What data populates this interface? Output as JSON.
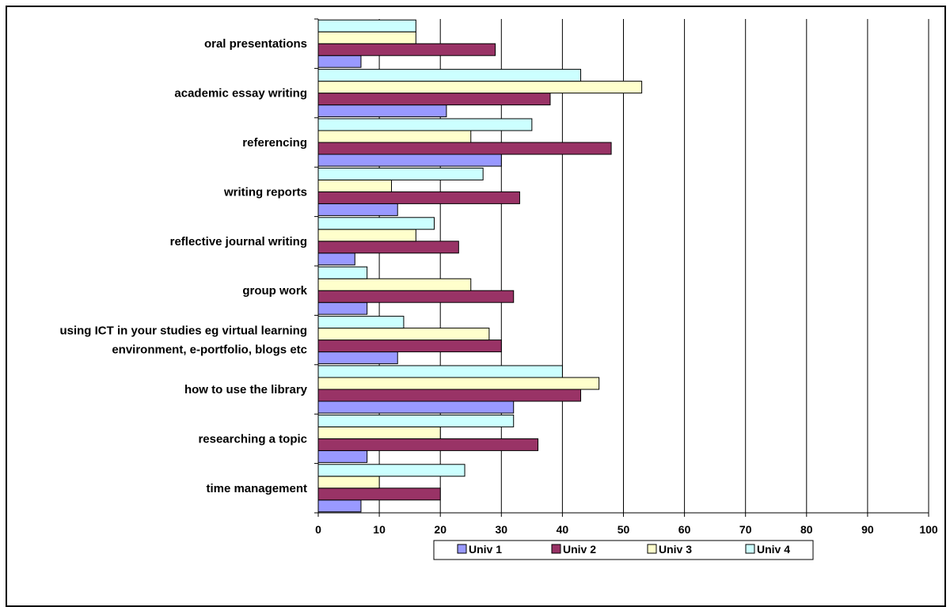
{
  "chart_data": {
    "type": "bar",
    "orientation": "horizontal",
    "categories": [
      "oral presentations",
      "academic essay writing",
      "referencing",
      "writing reports",
      "reflective journal writing",
      "group work",
      "using ICT in your studies eg virtual learning environment, e-portfolio, blogs etc",
      "how to use the library",
      "researching a topic",
      "time management"
    ],
    "category_lines": [
      [
        "oral presentations"
      ],
      [
        "academic essay writing"
      ],
      [
        "referencing"
      ],
      [
        "writing reports"
      ],
      [
        "reflective journal writing"
      ],
      [
        "group work"
      ],
      [
        "using ICT in your studies eg virtual learning",
        "environment, e-portfolio, blogs etc"
      ],
      [
        "how to use the library"
      ],
      [
        "researching a topic"
      ],
      [
        "time management"
      ]
    ],
    "series": [
      {
        "name": "Univ 1",
        "color": "#9999FF",
        "values": [
          7,
          21,
          30,
          13,
          6,
          8,
          13,
          32,
          8,
          7
        ]
      },
      {
        "name": "Univ 2",
        "color": "#993366",
        "values": [
          29,
          38,
          48,
          33,
          23,
          32,
          30,
          43,
          36,
          20
        ]
      },
      {
        "name": "Univ 3",
        "color": "#FFFFCC",
        "values": [
          16,
          53,
          25,
          12,
          16,
          25,
          28,
          46,
          20,
          10
        ]
      },
      {
        "name": "Univ 4",
        "color": "#CCFFFF",
        "values": [
          16,
          43,
          35,
          27,
          19,
          8,
          14,
          40,
          32,
          24
        ]
      }
    ],
    "x_ticks": [
      0,
      10,
      20,
      30,
      40,
      50,
      60,
      70,
      80,
      90,
      100
    ],
    "xlim": [
      0,
      100
    ],
    "grid": true,
    "legend_position": "bottom"
  }
}
